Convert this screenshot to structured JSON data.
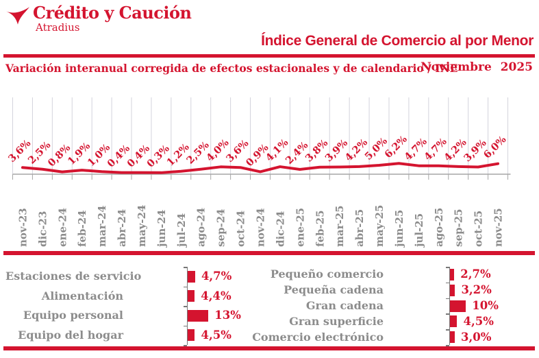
{
  "brand": {
    "name": "Crédito y Caución",
    "subbrand": "Atradius"
  },
  "header": {
    "title": "Índice General de Comercio al por Menor",
    "subtitle": "Variación interanual corregida de efectos estacionales y de calendario / INE",
    "date": "Noviembre 2025"
  },
  "colors": {
    "red": "#D4142F",
    "gray_text": "#8C8C8C",
    "gridline": "#D3D3DC",
    "axis": "#A6A6A6"
  },
  "chart_data": [
    {
      "type": "line",
      "title": "Índice General de Comercio al por Menor",
      "subtitle": "Variación interanual corregida de efectos estacionales y de calendario / INE",
      "x": [
        "nov-23",
        "dic-23",
        "ene-24",
        "feb-24",
        "mar-24",
        "abr-24",
        "may-24",
        "jun-24",
        "jul-24",
        "ago-24",
        "sep-24",
        "oct-24",
        "nov-24",
        "dic-24",
        "ene-25",
        "feb-25",
        "mar-25",
        "abr-25",
        "may-25",
        "jun-25",
        "jul-25",
        "ago-25",
        "sep-25",
        "oct-25",
        "nov-25"
      ],
      "values": [
        3.6,
        2.5,
        0.8,
        1.9,
        1.0,
        0.4,
        0.4,
        0.3,
        1.2,
        2.5,
        4.0,
        3.6,
        0.9,
        4.1,
        2.4,
        3.8,
        3.9,
        4.2,
        5.0,
        6.2,
        4.7,
        4.7,
        4.2,
        3.9,
        6.0
      ],
      "point_labels": [
        "3,6%",
        "2,5%",
        "0,8%",
        "1,9%",
        "1,0%",
        "0,4%",
        "0,4%",
        "0,3%",
        "1,2%",
        "2,5%",
        "4,0%",
        "3,6%",
        "0,9%",
        "4,1%",
        "2,4%",
        "3,8%",
        "3,9%",
        "4,2%",
        "5,0%",
        "6,2%",
        "4,7%",
        "4,7%",
        "4,2%",
        "3,9%",
        "6,0%"
      ],
      "unit": "%",
      "ylim": [
        0,
        8
      ],
      "grid": "vertical-only",
      "legend": "none",
      "line_color": "#D4142F"
    },
    {
      "type": "bar",
      "orientation": "horizontal",
      "position": "bottom-left",
      "categories": [
        "Estaciones de servicio",
        "Alimentación",
        "Equipo personal",
        "Equipo del hogar"
      ],
      "values": [
        4.7,
        4.4,
        13,
        4.5
      ],
      "value_labels": [
        "4,7%",
        "4,4%",
        "13%",
        "4,5%"
      ],
      "bar_color": "#D4142F"
    },
    {
      "type": "bar",
      "orientation": "horizontal",
      "position": "bottom-right",
      "categories": [
        "Pequeño comercio",
        "Pequeña cadena",
        "Gran cadena",
        "Gran superficie",
        "Comercio electrónico"
      ],
      "values": [
        2.7,
        3.2,
        10,
        4.5,
        3.0
      ],
      "value_labels": [
        "2,7%",
        "3,2%",
        "10%",
        "4,5%",
        "3,0%"
      ],
      "bar_color": "#D4142F"
    }
  ]
}
